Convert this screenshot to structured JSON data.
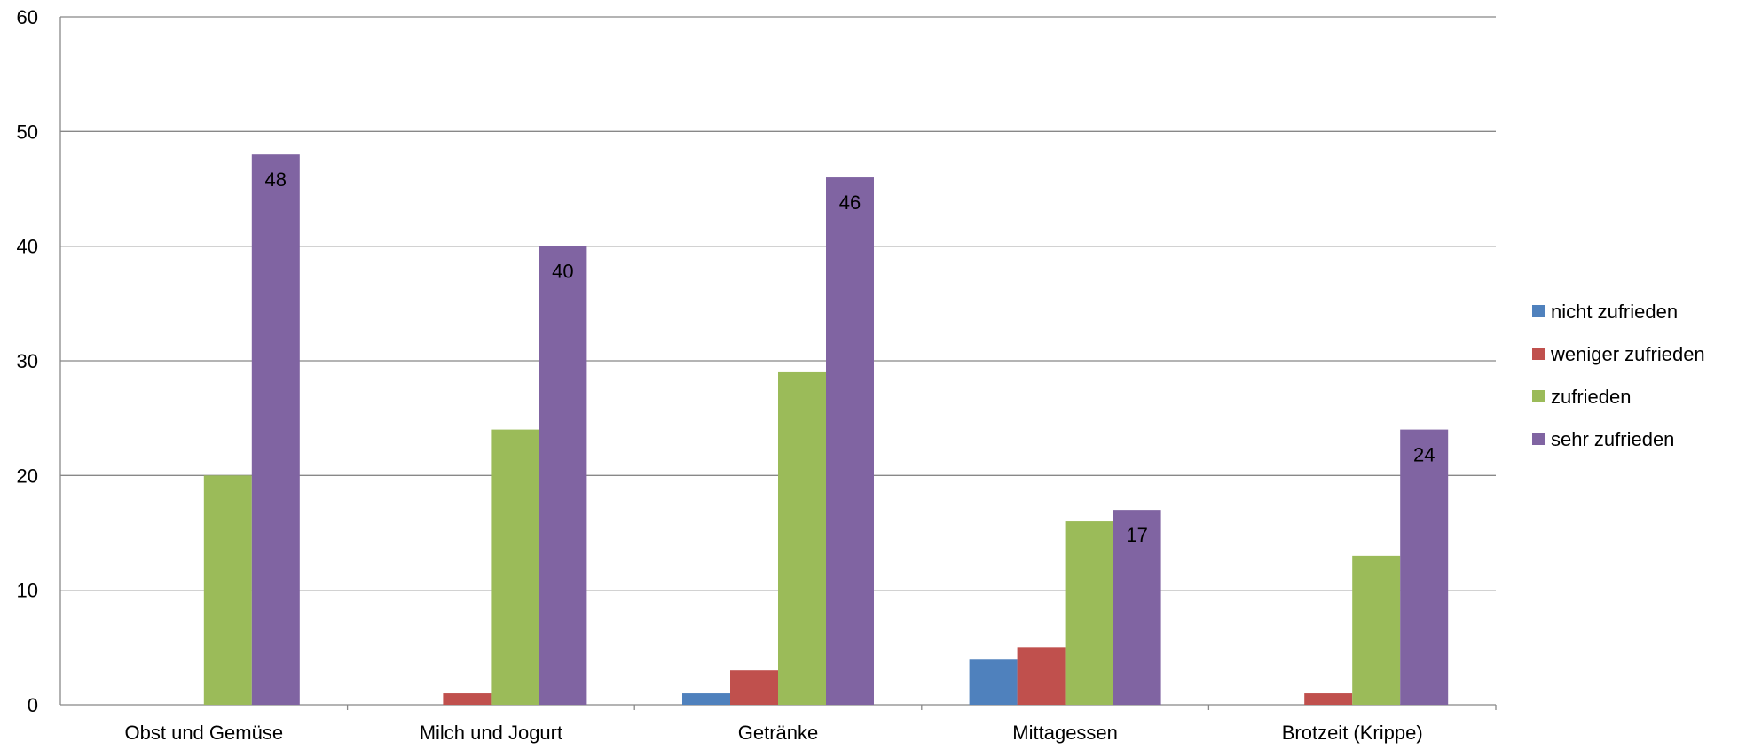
{
  "chart_data": {
    "type": "bar",
    "title": "",
    "xlabel": "",
    "ylabel": "",
    "ylim": [
      0,
      60
    ],
    "yticks": [
      0,
      10,
      20,
      30,
      40,
      50,
      60
    ],
    "grid": true,
    "legend_position": "right",
    "categories": [
      "Obst und Gemüse",
      "Milch und Jogurt",
      "Getränke",
      "Mittagessen",
      "Brotzeit (Krippe)"
    ],
    "series": [
      {
        "name": "nicht zufrieden",
        "color": "#4F81BD",
        "values": [
          0,
          0,
          1,
          4,
          0
        ],
        "labels": [
          null,
          null,
          null,
          null,
          null
        ]
      },
      {
        "name": "weniger zufrieden",
        "color": "#C0504D",
        "values": [
          0,
          1,
          3,
          5,
          1
        ],
        "labels": [
          null,
          null,
          null,
          null,
          null
        ]
      },
      {
        "name": "zufrieden",
        "color": "#9BBB59",
        "values": [
          20,
          24,
          29,
          16,
          13
        ],
        "labels": [
          null,
          null,
          null,
          null,
          null
        ]
      },
      {
        "name": "sehr zufrieden",
        "color": "#8064A2",
        "values": [
          48,
          40,
          46,
          17,
          24
        ],
        "labels": [
          "48",
          "40",
          "46",
          "17",
          "24"
        ]
      }
    ]
  }
}
